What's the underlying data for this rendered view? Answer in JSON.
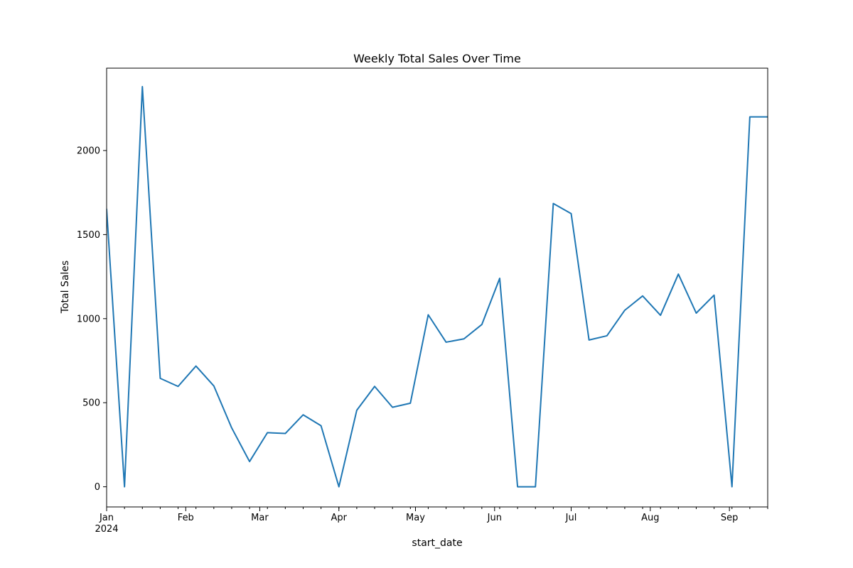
{
  "chart_data": {
    "type": "line",
    "title": "Weekly Total Sales Over Time",
    "xlabel": "start_date",
    "ylabel": "Total Sales",
    "xlim": [
      "2024-01-01",
      "2024-09-16"
    ],
    "ylim": [
      -120,
      2490
    ],
    "grid": false,
    "legend": "none",
    "line_color": "#1f77b4",
    "x_ticks": [
      {
        "date": "2024-01-01",
        "label": "Jan",
        "sublabel": "2024"
      },
      {
        "date": "2024-02-01",
        "label": "Feb"
      },
      {
        "date": "2024-03-01",
        "label": "Mar"
      },
      {
        "date": "2024-04-01",
        "label": "Apr"
      },
      {
        "date": "2024-05-01",
        "label": "May"
      },
      {
        "date": "2024-06-01",
        "label": "Jun"
      },
      {
        "date": "2024-07-01",
        "label": "Jul"
      },
      {
        "date": "2024-08-01",
        "label": "Aug"
      },
      {
        "date": "2024-09-01",
        "label": "Sep"
      }
    ],
    "x_minor_ticks": [
      "2024-01-08",
      "2024-01-15",
      "2024-01-22",
      "2024-01-29",
      "2024-02-05",
      "2024-02-12",
      "2024-02-19",
      "2024-02-26",
      "2024-03-04",
      "2024-03-11",
      "2024-03-18",
      "2024-03-25",
      "2024-04-01",
      "2024-04-08",
      "2024-04-15",
      "2024-04-22",
      "2024-04-29",
      "2024-05-06",
      "2024-05-13",
      "2024-05-20",
      "2024-05-27",
      "2024-06-03",
      "2024-06-10",
      "2024-06-17",
      "2024-06-24",
      "2024-07-01",
      "2024-07-08",
      "2024-07-15",
      "2024-07-22",
      "2024-07-29",
      "2024-08-05",
      "2024-08-12",
      "2024-08-19",
      "2024-08-26",
      "2024-09-02",
      "2024-09-09",
      "2024-09-16"
    ],
    "y_ticks": [
      0,
      500,
      1000,
      1500,
      2000
    ],
    "series": [
      {
        "x": [
          "2024-01-01",
          "2024-01-08",
          "2024-01-15",
          "2024-01-22",
          "2024-01-29",
          "2024-02-05",
          "2024-02-12",
          "2024-02-19",
          "2024-02-26",
          "2024-03-04",
          "2024-03-11",
          "2024-03-18",
          "2024-03-25",
          "2024-04-01",
          "2024-04-08",
          "2024-04-15",
          "2024-04-22",
          "2024-04-29",
          "2024-05-06",
          "2024-05-13",
          "2024-05-20",
          "2024-05-27",
          "2024-06-03",
          "2024-06-10",
          "2024-06-17",
          "2024-06-24",
          "2024-07-01",
          "2024-07-08",
          "2024-07-15",
          "2024-07-22",
          "2024-07-29",
          "2024-08-05",
          "2024-08-12",
          "2024-08-19",
          "2024-08-26",
          "2024-09-02",
          "2024-09-09",
          "2024-09-16"
        ],
        "values": [
          1650,
          0,
          2380,
          645,
          597,
          718,
          600,
          350,
          150,
          322,
          317,
          428,
          363,
          0,
          455,
          597,
          473,
          497,
          1023,
          860,
          880,
          965,
          1240,
          0,
          0,
          1685,
          1625,
          873,
          898,
          1050,
          1135,
          1020,
          1265,
          1033,
          1140,
          0,
          2200,
          2200
        ]
      }
    ]
  }
}
